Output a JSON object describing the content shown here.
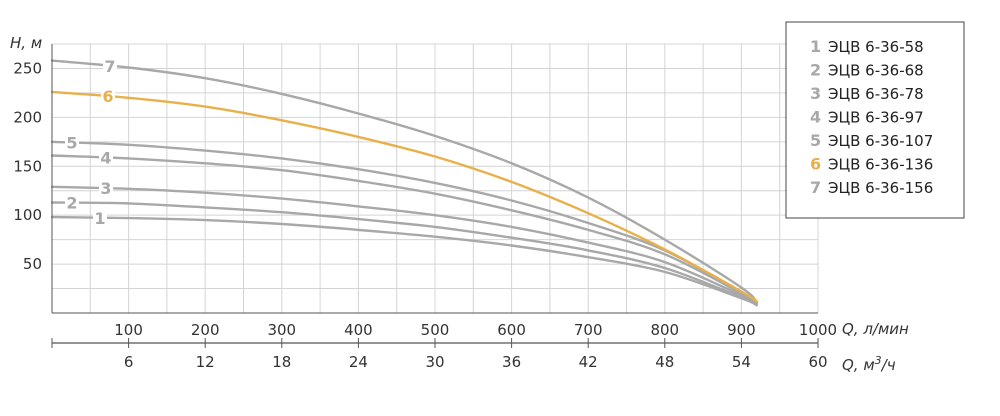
{
  "chart_data": {
    "type": "line",
    "ylabel": "H, м",
    "xlabel": "Q, л/мин",
    "x2label_prefix": "Q, м",
    "x2label_sup": "3",
    "x2label_suffix": "/ч",
    "xlim": [
      0,
      1000
    ],
    "ylim": [
      0,
      275
    ],
    "x_ticks": [
      100,
      200,
      300,
      400,
      500,
      600,
      700,
      800,
      900,
      1000
    ],
    "x2_ticks": [
      6,
      12,
      18,
      24,
      30,
      36,
      42,
      48,
      54,
      60
    ],
    "y_ticks": [
      50,
      100,
      150,
      200,
      250
    ],
    "grid": true,
    "legend_position": "top-right",
    "series": [
      {
        "label": "1",
        "name": "ЭЦВ 6-36-58",
        "color": "#a8a8a8",
        "x": [
          0,
          100,
          200,
          300,
          400,
          500,
          600,
          700,
          800,
          900,
          920
        ],
        "y": [
          98,
          97,
          95,
          91,
          85,
          78,
          69,
          57,
          42,
          15,
          8
        ]
      },
      {
        "label": "2",
        "name": "ЭЦВ 6-36-68",
        "color": "#a8a8a8",
        "x": [
          0,
          100,
          200,
          300,
          400,
          500,
          600,
          700,
          800,
          900,
          920
        ],
        "y": [
          113,
          112,
          108,
          103,
          96,
          88,
          77,
          64,
          46,
          16,
          8
        ]
      },
      {
        "label": "3",
        "name": "ЭЦВ 6-36-78",
        "color": "#a8a8a8",
        "x": [
          0,
          100,
          200,
          300,
          400,
          500,
          600,
          700,
          800,
          900,
          920
        ],
        "y": [
          129,
          127,
          123,
          117,
          109,
          100,
          88,
          72,
          52,
          18,
          9
        ]
      },
      {
        "label": "4",
        "name": "ЭЦВ 6-36-97",
        "color": "#a8a8a8",
        "x": [
          0,
          100,
          200,
          300,
          400,
          500,
          600,
          700,
          800,
          900,
          920
        ],
        "y": [
          161,
          158,
          153,
          146,
          135,
          122,
          105,
          85,
          60,
          20,
          10
        ]
      },
      {
        "label": "5",
        "name": "ЭЦВ 6-36-107",
        "color": "#a8a8a8",
        "x": [
          0,
          100,
          200,
          300,
          400,
          500,
          600,
          700,
          800,
          900,
          920
        ],
        "y": [
          175,
          172,
          166,
          158,
          147,
          133,
          115,
          92,
          64,
          21,
          10
        ]
      },
      {
        "label": "6",
        "name": "ЭЦВ 6-36-136",
        "color": "#e8b04a",
        "x": [
          0,
          100,
          200,
          300,
          400,
          500,
          600,
          700,
          800,
          900,
          920
        ],
        "y": [
          226,
          220,
          211,
          197,
          180,
          160,
          134,
          102,
          65,
          22,
          12
        ]
      },
      {
        "label": "7",
        "name": "ЭЦВ 6-36-156",
        "color": "#a8a8a8",
        "x": [
          0,
          100,
          200,
          300,
          400,
          500,
          600,
          700,
          800,
          900,
          920
        ],
        "y": [
          258,
          251,
          240,
          224,
          204,
          181,
          153,
          118,
          75,
          26,
          11
        ]
      }
    ],
    "curve_labels": [
      "1",
      "2",
      "3",
      "4",
      "5",
      "6",
      "7"
    ]
  }
}
